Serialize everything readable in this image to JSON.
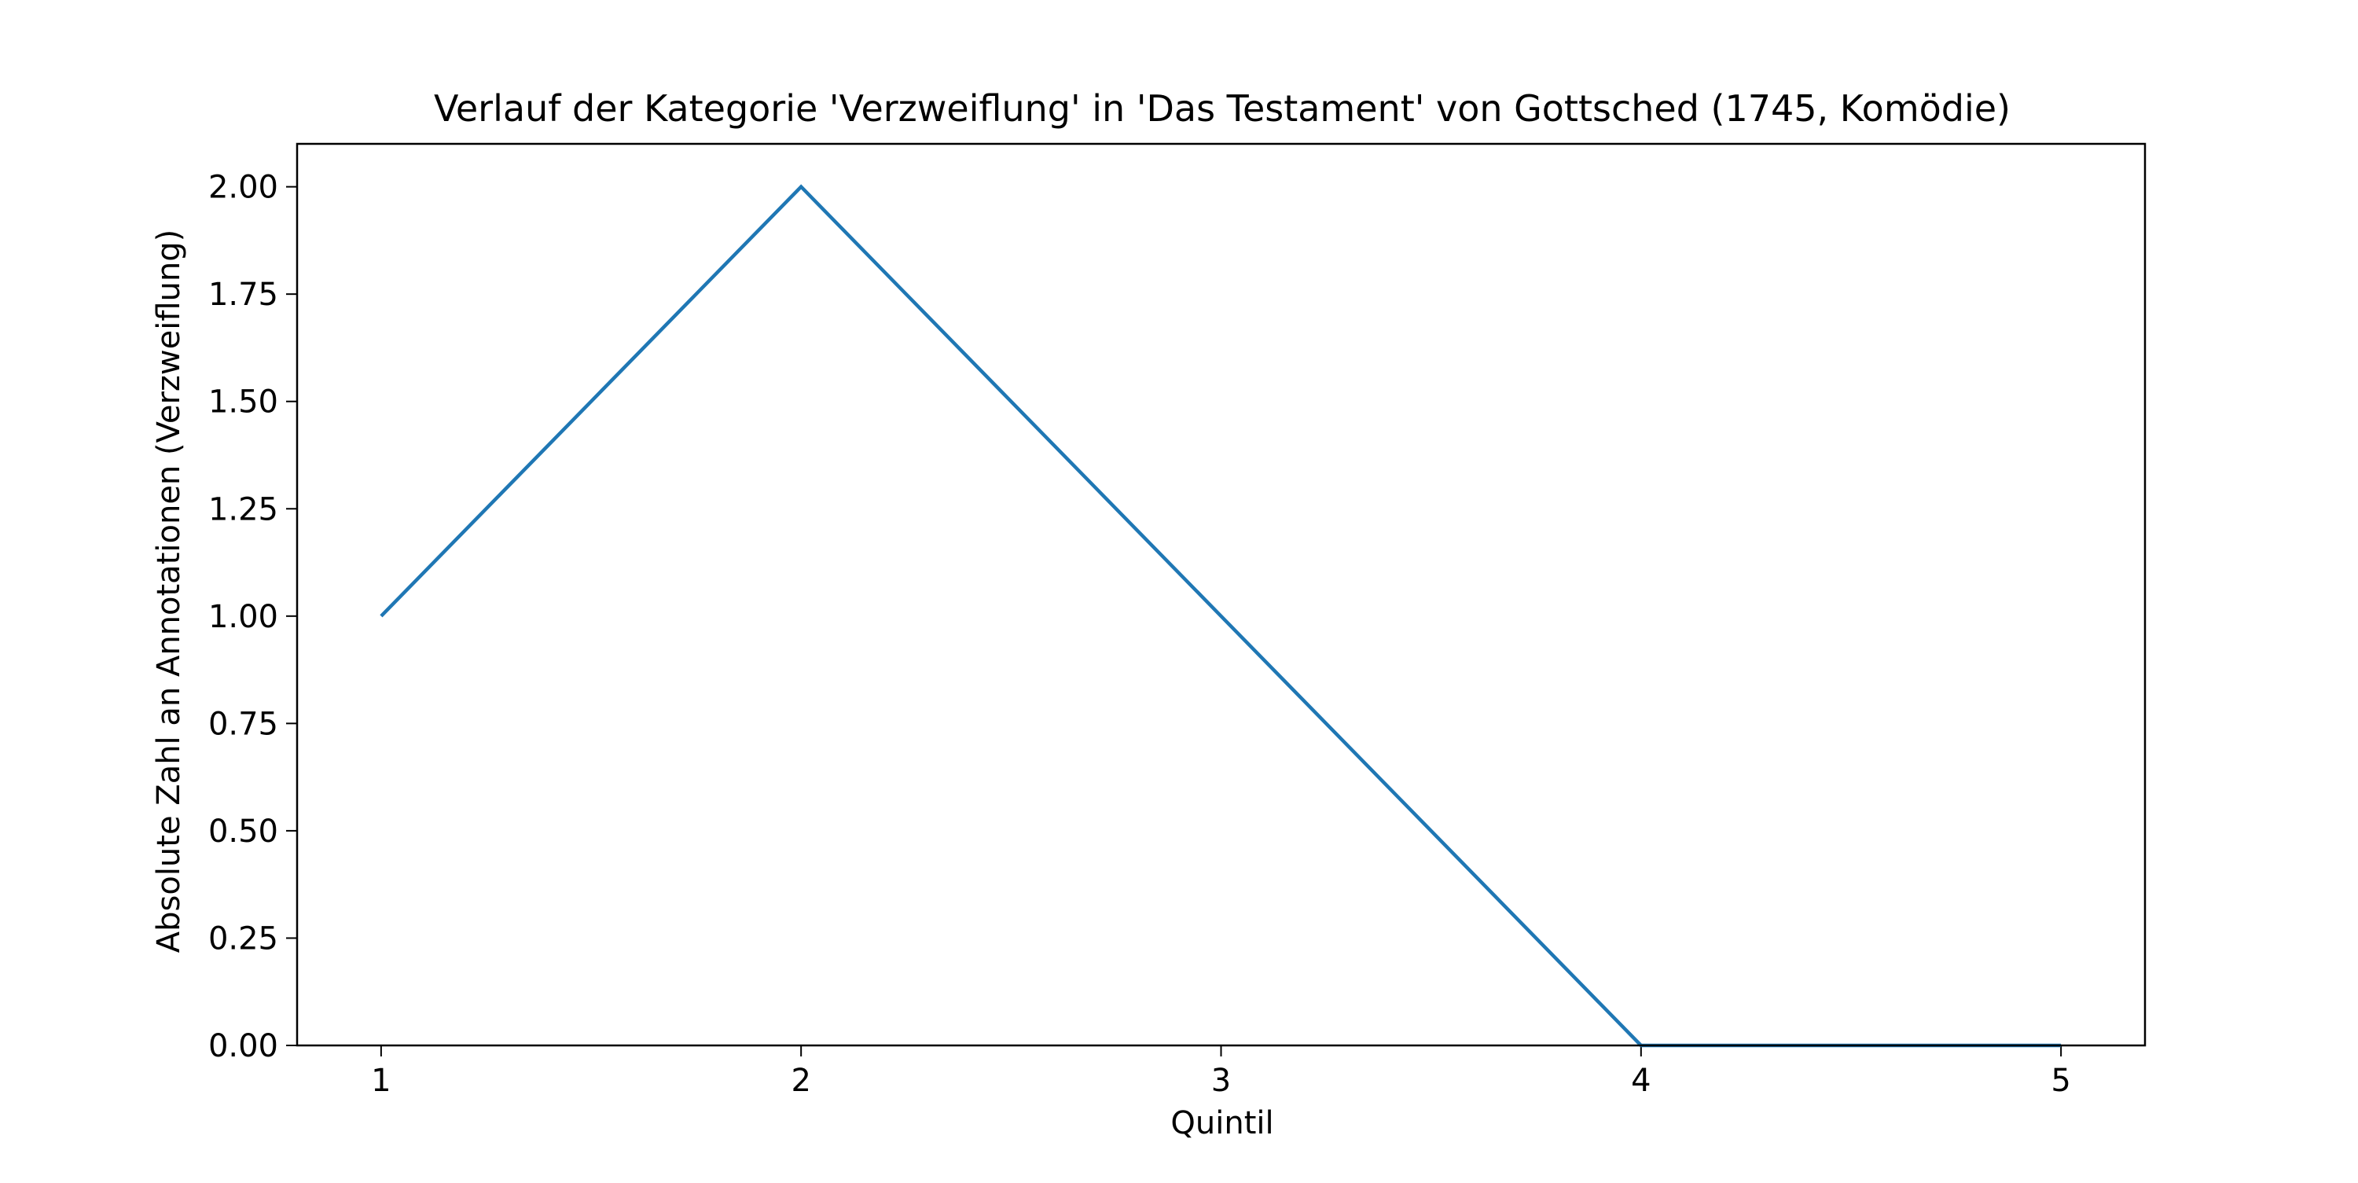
{
  "chart_data": {
    "type": "line",
    "title": "Verlauf der Kategorie 'Verzweiflung' in 'Das Testament' von Gottsched (1745, Komödie)",
    "xlabel": "Quintil",
    "ylabel": "Absolute Zahl an Annotationen (Verzweiflung)",
    "x": [
      1,
      2,
      3,
      4,
      5
    ],
    "series": [
      {
        "values": [
          1,
          2,
          1,
          0,
          0
        ],
        "color": "#1f77b4"
      }
    ],
    "xlim": [
      0.8,
      5.2
    ],
    "ylim": [
      0,
      2.1
    ],
    "xticks": [
      "1",
      "2",
      "3",
      "4",
      "5"
    ],
    "yticks": [
      "0.00",
      "0.25",
      "0.50",
      "0.75",
      "1.00",
      "1.25",
      "1.50",
      "1.75",
      "2.00"
    ],
    "grid": false,
    "legend": "none"
  }
}
